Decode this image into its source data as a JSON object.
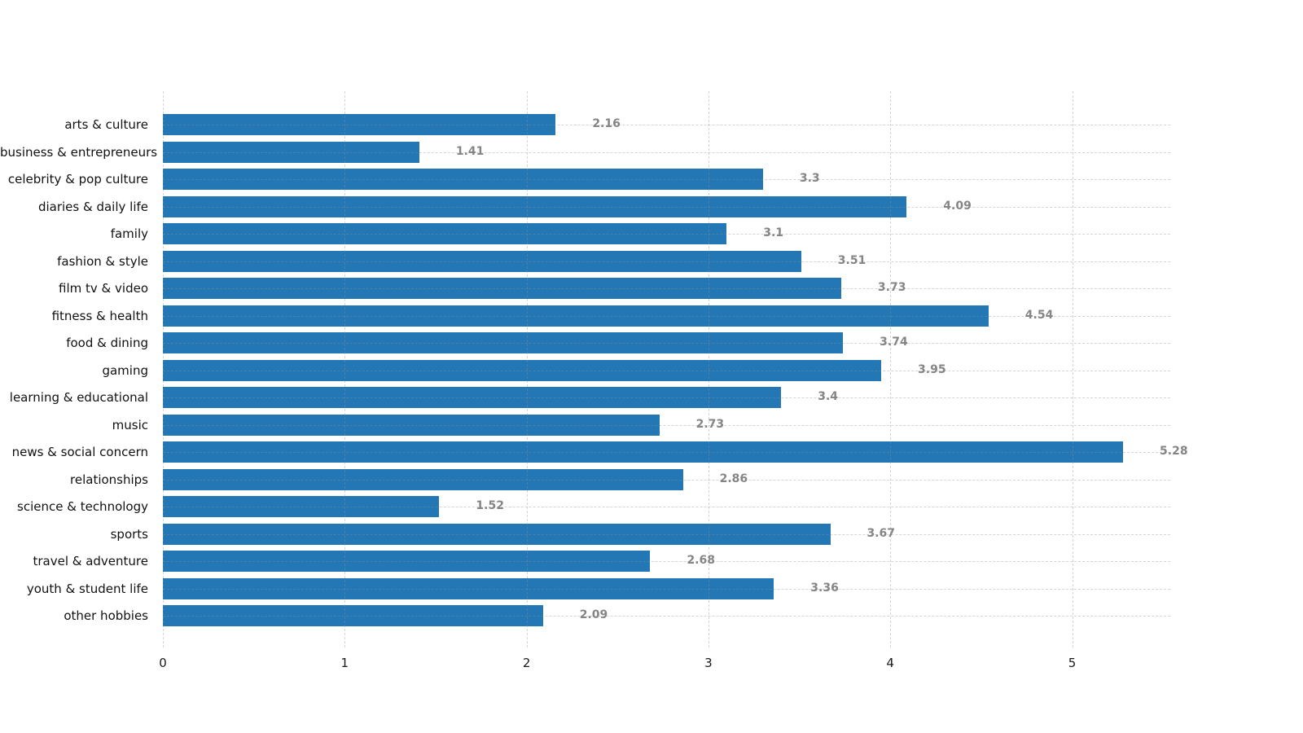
{
  "chart_data": {
    "type": "bar",
    "orientation": "horizontal",
    "title": "",
    "xlabel": "",
    "ylabel": "",
    "categories": [
      "arts & culture",
      "business & entrepreneurs",
      "celebrity & pop culture",
      "diaries & daily life",
      "family",
      "fashion & style",
      "film tv & video",
      "fitness & health",
      "food & dining",
      "gaming",
      "learning & educational",
      "music",
      "news & social concern",
      "relationships",
      "science & technology",
      "sports",
      "travel & adventure",
      "youth & student life",
      "other hobbies"
    ],
    "values": [
      2.16,
      1.41,
      3.3,
      4.09,
      3.1,
      3.51,
      3.73,
      4.54,
      3.74,
      3.95,
      3.4,
      2.73,
      5.28,
      2.86,
      1.52,
      3.67,
      2.68,
      3.36,
      2.09
    ],
    "value_labels": [
      "2.16",
      "1.41",
      "3.3",
      "4.09",
      "3.1",
      "3.51",
      "3.73",
      "4.54",
      "3.74",
      "3.95",
      "3.4",
      "2.73",
      "5.28",
      "2.86",
      "1.52",
      "3.67",
      "2.68",
      "3.36",
      "2.09"
    ],
    "xticks": [
      0,
      1,
      2,
      3,
      4,
      5
    ],
    "xtick_labels": [
      "0",
      "1",
      "2",
      "3",
      "4",
      "5"
    ],
    "xlim": [
      0,
      5.54
    ],
    "grid": "dashed vertical at x-ticks and dashed horizontal at each category row",
    "legend": "none",
    "bar_color": "#2277b4",
    "value_label_color": "#858585",
    "category_label_color": "#111111",
    "tick_label_color": "#1a1a1a",
    "background_color": "#ffffff"
  }
}
